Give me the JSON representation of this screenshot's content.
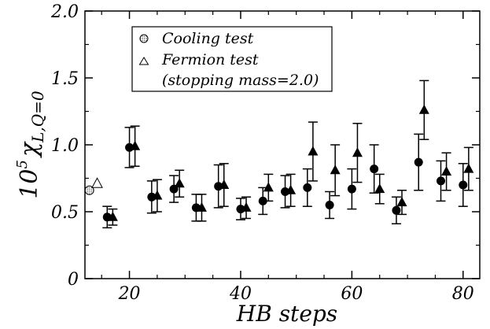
{
  "chart_data": {
    "type": "scatter",
    "xlabel": "HB steps",
    "ylabel": {
      "exponent": "5",
      "base": "10",
      "symbol": "χ",
      "subscript": "L,Q=0"
    },
    "xlim": [
      12,
      83
    ],
    "ylim": [
      0,
      2.0
    ],
    "x_ticks": [
      "20",
      "40",
      "60",
      "80"
    ],
    "y_ticks": [
      "0",
      "0.5",
      "1.0",
      "1.5",
      "2.0"
    ],
    "legend": {
      "placement": "top-center",
      "entries": [
        {
          "label": "Cooling test",
          "marker": "dotted-circle"
        },
        {
          "label": "Fermion test",
          "marker": "open-triangle"
        },
        {
          "label": "(stopping mass=2.0)",
          "marker": "none"
        }
      ]
    },
    "series": [
      {
        "name": "Cooling test",
        "marker": "dotted-circle",
        "points": [
          {
            "x": 12.8,
            "y": 0.66
          }
        ]
      },
      {
        "name": "Fermion test",
        "marker": "open-triangle",
        "points": [
          {
            "x": 14.2,
            "y": 0.71
          }
        ]
      },
      {
        "marker": "filled-circle",
        "points": [
          {
            "x": 16,
            "y": 0.46,
            "err": 0.08
          },
          {
            "x": 20,
            "y": 0.98,
            "err": 0.15
          },
          {
            "x": 24,
            "y": 0.61,
            "err": 0.12
          },
          {
            "x": 28,
            "y": 0.67,
            "err": 0.1
          },
          {
            "x": 32,
            "y": 0.53,
            "err": 0.1
          },
          {
            "x": 36,
            "y": 0.69,
            "err": 0.16
          },
          {
            "x": 40,
            "y": 0.52,
            "err": 0.08
          },
          {
            "x": 44,
            "y": 0.58,
            "err": 0.1
          },
          {
            "x": 48,
            "y": 0.65,
            "err": 0.12
          },
          {
            "x": 52,
            "y": 0.68,
            "err": 0.14
          },
          {
            "x": 56,
            "y": 0.55,
            "err": 0.1
          },
          {
            "x": 60,
            "y": 0.67,
            "err": 0.15
          },
          {
            "x": 64,
            "y": 0.82,
            "err": 0.18
          },
          {
            "x": 68,
            "y": 0.51,
            "err": 0.1
          },
          {
            "x": 72,
            "y": 0.87,
            "err": 0.21
          },
          {
            "x": 76,
            "y": 0.73,
            "err": 0.15
          },
          {
            "x": 80,
            "y": 0.7,
            "err": 0.16
          }
        ]
      },
      {
        "marker": "filled-triangle",
        "points": [
          {
            "x": 17,
            "y": 0.46,
            "err": 0.06
          },
          {
            "x": 21,
            "y": 0.99,
            "err": 0.15
          },
          {
            "x": 25,
            "y": 0.62,
            "err": 0.12
          },
          {
            "x": 29,
            "y": 0.71,
            "err": 0.1
          },
          {
            "x": 33,
            "y": 0.53,
            "err": 0.1
          },
          {
            "x": 37,
            "y": 0.7,
            "err": 0.16
          },
          {
            "x": 41,
            "y": 0.53,
            "err": 0.08
          },
          {
            "x": 45,
            "y": 0.68,
            "err": 0.1
          },
          {
            "x": 49,
            "y": 0.66,
            "err": 0.12
          },
          {
            "x": 53,
            "y": 0.95,
            "err": 0.22
          },
          {
            "x": 57,
            "y": 0.81,
            "err": 0.19
          },
          {
            "x": 61,
            "y": 0.94,
            "err": 0.22
          },
          {
            "x": 65,
            "y": 0.67,
            "err": 0.11
          },
          {
            "x": 69,
            "y": 0.57,
            "err": 0.09
          },
          {
            "x": 73,
            "y": 1.26,
            "err": 0.22
          },
          {
            "x": 77,
            "y": 0.8,
            "err": 0.14
          },
          {
            "x": 81,
            "y": 0.82,
            "err": 0.16
          }
        ]
      }
    ]
  }
}
